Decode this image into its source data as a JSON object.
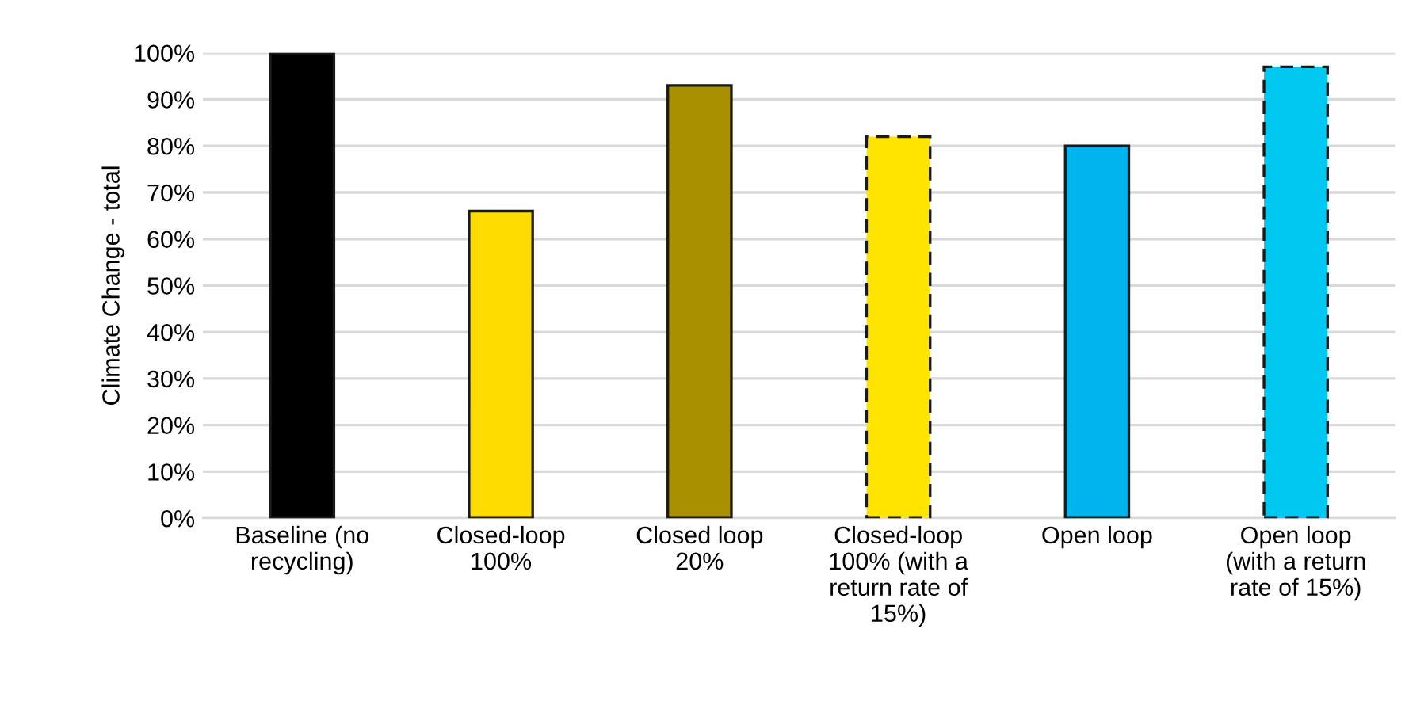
{
  "chart_data": {
    "type": "bar",
    "ylabel": "Climate Change - total",
    "categories": [
      "Baseline (no\nrecycling)",
      "Closed-loop\n100%",
      "Closed loop\n20%",
      "Closed-loop\n100% (with a\nreturn rate of\n15%)",
      "Open loop",
      "Open loop\n(with a return\nrate of 15%)"
    ],
    "series": [
      {
        "line_style": "solid",
        "colors": [
          "#000000",
          "#ffdc00",
          "#a89000",
          null,
          "#00b4ec",
          null
        ],
        "values": [
          100,
          66,
          93,
          null,
          80,
          null
        ]
      },
      {
        "line_style": "dashed",
        "colors": [
          null,
          null,
          null,
          "#ffe400",
          null,
          "#00c8f0"
        ],
        "values": [
          null,
          null,
          null,
          82,
          null,
          97
        ]
      }
    ],
    "ylim": [
      0,
      100
    ],
    "yticks": [
      {
        "value": 0,
        "label": "0%"
      },
      {
        "value": 10,
        "label": "10%"
      },
      {
        "value": 20,
        "label": "20%"
      },
      {
        "value": 30,
        "label": "30%"
      },
      {
        "value": 40,
        "label": "40%"
      },
      {
        "value": 50,
        "label": "50%"
      },
      {
        "value": 60,
        "label": "60%"
      },
      {
        "value": 70,
        "label": "70%"
      },
      {
        "value": 80,
        "label": "80%"
      },
      {
        "value": 90,
        "label": "90%"
      },
      {
        "value": 100,
        "label": "100%"
      }
    ],
    "grid": "y"
  }
}
